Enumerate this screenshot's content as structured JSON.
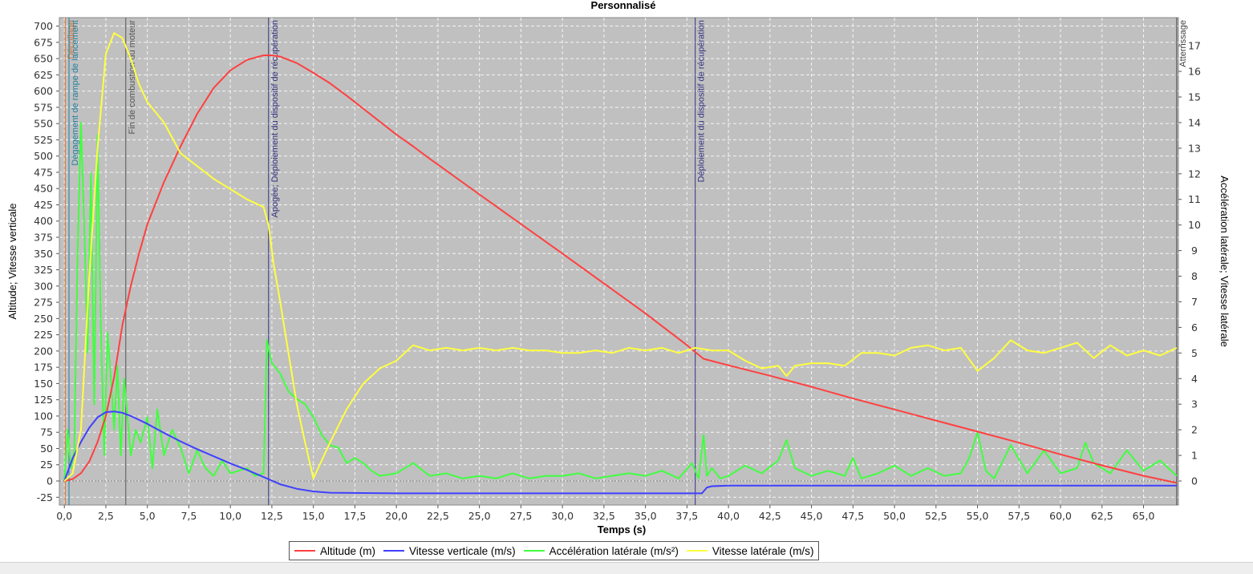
{
  "chart_data": {
    "type": "line",
    "title": "Personnalisé",
    "xlabel": "Temps (s)",
    "ylabel_left": "Altitude; Vitesse verticale",
    "ylabel_right": "Accélération latérale; Vitesse latérale",
    "xlim": [
      -0.3,
      67.1
    ],
    "ylim_left": [
      -37,
      713
    ],
    "ylim_right": [
      -0.94,
      18.1
    ],
    "x_ticks": [
      "0,0",
      "2,5",
      "5,0",
      "7,5",
      "10,0",
      "12,5",
      "15,0",
      "17,5",
      "20,0",
      "22,5",
      "25,0",
      "27,5",
      "30,0",
      "32,5",
      "35,0",
      "37,5",
      "40,0",
      "42,5",
      "45,0",
      "47,5",
      "50,0",
      "52,5",
      "55,0",
      "57,5",
      "60,0",
      "62,5",
      "65,0"
    ],
    "y_left_ticks": [
      "-25",
      "0",
      "25",
      "50",
      "75",
      "100",
      "125",
      "150",
      "175",
      "200",
      "225",
      "250",
      "275",
      "300",
      "325",
      "350",
      "375",
      "400",
      "425",
      "450",
      "475",
      "500",
      "525",
      "550",
      "575",
      "600",
      "625",
      "650",
      "675",
      "700"
    ],
    "y_right_ticks": [
      "0",
      "1",
      "2",
      "3",
      "4",
      "5",
      "6",
      "7",
      "8",
      "9",
      "10",
      "11",
      "12",
      "13",
      "14",
      "15",
      "16",
      "17"
    ],
    "grid": true,
    "legend_position": "bottom",
    "background_color": "#c0c0c0",
    "series": [
      {
        "name": "Altitude (m)",
        "axis": "left",
        "color": "#ff4040",
        "points": [
          [
            0,
            0
          ],
          [
            0.5,
            3
          ],
          [
            1,
            12
          ],
          [
            1.5,
            30
          ],
          [
            2,
            60
          ],
          [
            2.5,
            100
          ],
          [
            3,
            160
          ],
          [
            3.5,
            240
          ],
          [
            4,
            300
          ],
          [
            4.5,
            350
          ],
          [
            5,
            395
          ],
          [
            6,
            460
          ],
          [
            7,
            515
          ],
          [
            8,
            565
          ],
          [
            9,
            605
          ],
          [
            10,
            632
          ],
          [
            11,
            648
          ],
          [
            12,
            655
          ],
          [
            12.5,
            655
          ],
          [
            13,
            653
          ],
          [
            14,
            643
          ],
          [
            15,
            628
          ],
          [
            16,
            612
          ],
          [
            17,
            593
          ],
          [
            18,
            573
          ],
          [
            20,
            533
          ],
          [
            21,
            515
          ],
          [
            22,
            496
          ],
          [
            25,
            441
          ],
          [
            30,
            350
          ],
          [
            35,
            258
          ],
          [
            37.5,
            209
          ],
          [
            38.5,
            188
          ],
          [
            40,
            178
          ],
          [
            42.5,
            162
          ],
          [
            45,
            145
          ],
          [
            47.5,
            127
          ],
          [
            50,
            110
          ],
          [
            52.5,
            93
          ],
          [
            55,
            76
          ],
          [
            57.5,
            59
          ],
          [
            60,
            41
          ],
          [
            62.5,
            24
          ],
          [
            65,
            8
          ],
          [
            67,
            -3
          ]
        ]
      },
      {
        "name": "Vitesse verticale (m/s)",
        "axis": "left",
        "color": "#4040ff",
        "points": [
          [
            0,
            0
          ],
          [
            0.5,
            35
          ],
          [
            1,
            60
          ],
          [
            1.5,
            82
          ],
          [
            2,
            98
          ],
          [
            2.5,
            106
          ],
          [
            3,
            107
          ],
          [
            3.5,
            105
          ],
          [
            4,
            100
          ],
          [
            5,
            88
          ],
          [
            6,
            74
          ],
          [
            7,
            61
          ],
          [
            8,
            49
          ],
          [
            9,
            38
          ],
          [
            10,
            27
          ],
          [
            11,
            17
          ],
          [
            12,
            6
          ],
          [
            13,
            -5
          ],
          [
            14,
            -12
          ],
          [
            15,
            -16
          ],
          [
            16,
            -18
          ],
          [
            20,
            -19
          ],
          [
            25,
            -19
          ],
          [
            30,
            -19
          ],
          [
            35,
            -19
          ],
          [
            38.4,
            -19
          ],
          [
            38.7,
            -10
          ],
          [
            39,
            -8
          ],
          [
            40,
            -7
          ],
          [
            50,
            -7
          ],
          [
            60,
            -7
          ],
          [
            67,
            -7
          ]
        ]
      },
      {
        "name": "Accélération latérale (m/s²)",
        "axis": "right",
        "color": "#40ff40",
        "points": [
          [
            0,
            0
          ],
          [
            0.2,
            2
          ],
          [
            0.4,
            0.5
          ],
          [
            0.6,
            1.2
          ],
          [
            0.8,
            9
          ],
          [
            1,
            14
          ],
          [
            1.2,
            10
          ],
          [
            1.4,
            5
          ],
          [
            1.6,
            12
          ],
          [
            1.8,
            3
          ],
          [
            2,
            13.5
          ],
          [
            2.2,
            6
          ],
          [
            2.4,
            1
          ],
          [
            2.6,
            5.8
          ],
          [
            2.8,
            4
          ],
          [
            3,
            2
          ],
          [
            3.2,
            4.5
          ],
          [
            3.4,
            1
          ],
          [
            3.6,
            4
          ],
          [
            3.8,
            2.5
          ],
          [
            4,
            1
          ],
          [
            4.3,
            2
          ],
          [
            4.6,
            1.5
          ],
          [
            5,
            2.5
          ],
          [
            5.3,
            0.5
          ],
          [
            5.6,
            2.8
          ],
          [
            6,
            1
          ],
          [
            6.5,
            2
          ],
          [
            7,
            1.3
          ],
          [
            7.5,
            0.3
          ],
          [
            8,
            1.2
          ],
          [
            8.5,
            0.5
          ],
          [
            9,
            0.2
          ],
          [
            9.5,
            0.8
          ],
          [
            10,
            0.3
          ],
          [
            11,
            0.5
          ],
          [
            11.5,
            0.2
          ],
          [
            12,
            0.3
          ],
          [
            12.2,
            5.5
          ],
          [
            12.5,
            4.6
          ],
          [
            13,
            4.2
          ],
          [
            13.5,
            3.5
          ],
          [
            14,
            3.2
          ],
          [
            14.5,
            3
          ],
          [
            15,
            2.5
          ],
          [
            15.5,
            1.8
          ],
          [
            16,
            1.4
          ],
          [
            16.5,
            1.3
          ],
          [
            17,
            0.7
          ],
          [
            17.5,
            0.9
          ],
          [
            18,
            0.7
          ],
          [
            18.5,
            0.4
          ],
          [
            19,
            0.2
          ],
          [
            20,
            0.3
          ],
          [
            21,
            0.7
          ],
          [
            22,
            0.2
          ],
          [
            23,
            0.3
          ],
          [
            24,
            0.1
          ],
          [
            25,
            0.2
          ],
          [
            26,
            0.1
          ],
          [
            27,
            0.3
          ],
          [
            28,
            0.1
          ],
          [
            29,
            0.2
          ],
          [
            30,
            0.2
          ],
          [
            31,
            0.3
          ],
          [
            32,
            0.1
          ],
          [
            33,
            0.2
          ],
          [
            34,
            0.3
          ],
          [
            35,
            0.2
          ],
          [
            36,
            0.4
          ],
          [
            37,
            0.1
          ],
          [
            37.8,
            0.7
          ],
          [
            38.2,
            0.1
          ],
          [
            38.5,
            1.8
          ],
          [
            38.7,
            0.2
          ],
          [
            39,
            0.5
          ],
          [
            39.5,
            0.1
          ],
          [
            40,
            0.2
          ],
          [
            41,
            0.6
          ],
          [
            42,
            0.3
          ],
          [
            43,
            0.8
          ],
          [
            43.5,
            1.6
          ],
          [
            44,
            0.5
          ],
          [
            45,
            0.2
          ],
          [
            46,
            0.4
          ],
          [
            47,
            0.2
          ],
          [
            47.5,
            0.9
          ],
          [
            48,
            0.1
          ],
          [
            49,
            0.3
          ],
          [
            50,
            0.6
          ],
          [
            51,
            0.2
          ],
          [
            52,
            0.5
          ],
          [
            53,
            0.2
          ],
          [
            54,
            0.3
          ],
          [
            54.5,
            0.9
          ],
          [
            55,
            1.9
          ],
          [
            55.5,
            0.4
          ],
          [
            56,
            0.1
          ],
          [
            57,
            1.4
          ],
          [
            58,
            0.3
          ],
          [
            59,
            1.2
          ],
          [
            60,
            0.3
          ],
          [
            61,
            0.5
          ],
          [
            61.5,
            1.5
          ],
          [
            62,
            0.7
          ],
          [
            63,
            0.3
          ],
          [
            64,
            1.2
          ],
          [
            65,
            0.4
          ],
          [
            66,
            0.8
          ],
          [
            67,
            0.2
          ]
        ]
      },
      {
        "name": "Vitesse latérale (m/s)",
        "axis": "right",
        "color": "#ffff40",
        "points": [
          [
            0,
            0
          ],
          [
            0.5,
            0.3
          ],
          [
            1,
            2
          ],
          [
            1.5,
            8
          ],
          [
            2,
            13
          ],
          [
            2.5,
            16.7
          ],
          [
            3,
            17.5
          ],
          [
            3.5,
            17.3
          ],
          [
            4,
            16.5
          ],
          [
            4.5,
            15.5
          ],
          [
            5,
            14.8
          ],
          [
            6,
            14
          ],
          [
            7,
            12.8
          ],
          [
            8,
            12.3
          ],
          [
            9,
            11.8
          ],
          [
            10,
            11.4
          ],
          [
            11,
            11
          ],
          [
            12,
            10.7
          ],
          [
            12.3,
            10
          ],
          [
            12.6,
            8.5
          ],
          [
            13,
            7
          ],
          [
            13.5,
            5
          ],
          [
            14,
            3
          ],
          [
            14.5,
            1.5
          ],
          [
            15,
            0.1
          ],
          [
            15.5,
            0.8
          ],
          [
            16,
            1.5
          ],
          [
            17,
            2.8
          ],
          [
            18,
            3.8
          ],
          [
            19,
            4.4
          ],
          [
            20,
            4.7
          ],
          [
            21,
            5.3
          ],
          [
            22,
            5.1
          ],
          [
            23,
            5.2
          ],
          [
            24,
            5.1
          ],
          [
            25,
            5.2
          ],
          [
            26,
            5.1
          ],
          [
            27,
            5.2
          ],
          [
            28,
            5.1
          ],
          [
            29,
            5.1
          ],
          [
            30,
            5
          ],
          [
            31,
            5
          ],
          [
            32,
            5.1
          ],
          [
            33,
            5
          ],
          [
            34,
            5.2
          ],
          [
            35,
            5.1
          ],
          [
            36,
            5.2
          ],
          [
            37,
            5
          ],
          [
            38,
            5.2
          ],
          [
            39,
            5.1
          ],
          [
            40,
            5.1
          ],
          [
            41,
            4.7
          ],
          [
            42,
            4.4
          ],
          [
            43,
            4.5
          ],
          [
            43.5,
            4.1
          ],
          [
            44,
            4.5
          ],
          [
            45,
            4.6
          ],
          [
            46,
            4.6
          ],
          [
            47,
            4.5
          ],
          [
            48,
            5
          ],
          [
            49,
            5
          ],
          [
            50,
            4.9
          ],
          [
            51,
            5.2
          ],
          [
            52,
            5.3
          ],
          [
            53,
            5.1
          ],
          [
            54,
            5.2
          ],
          [
            55,
            4.3
          ],
          [
            56,
            4.8
          ],
          [
            57,
            5.5
          ],
          [
            58,
            5.1
          ],
          [
            59,
            5
          ],
          [
            60,
            5.2
          ],
          [
            61,
            5.4
          ],
          [
            62,
            4.8
          ],
          [
            63,
            5.3
          ],
          [
            64,
            4.9
          ],
          [
            65,
            5.1
          ],
          [
            66,
            4.9
          ],
          [
            67,
            5.2
          ]
        ]
      }
    ],
    "events": [
      {
        "t": 0.05,
        "label": "Décollage",
        "color": "#d07030"
      },
      {
        "t": 0.28,
        "label": "Dégagement de rampe de lancement",
        "color": "#2080a0"
      },
      {
        "t": 3.7,
        "label": "Fin de combustion du moteur",
        "color": "#555555"
      },
      {
        "t": 12.3,
        "label": "Apogée; Déploiement du dispositif de récupération",
        "color": "#303080"
      },
      {
        "t": 38.0,
        "label": "Déploiement du dispositif de récupération",
        "color": "#303080"
      },
      {
        "t": 67.0,
        "label": "Atterrissage",
        "color": "#404040"
      }
    ]
  }
}
